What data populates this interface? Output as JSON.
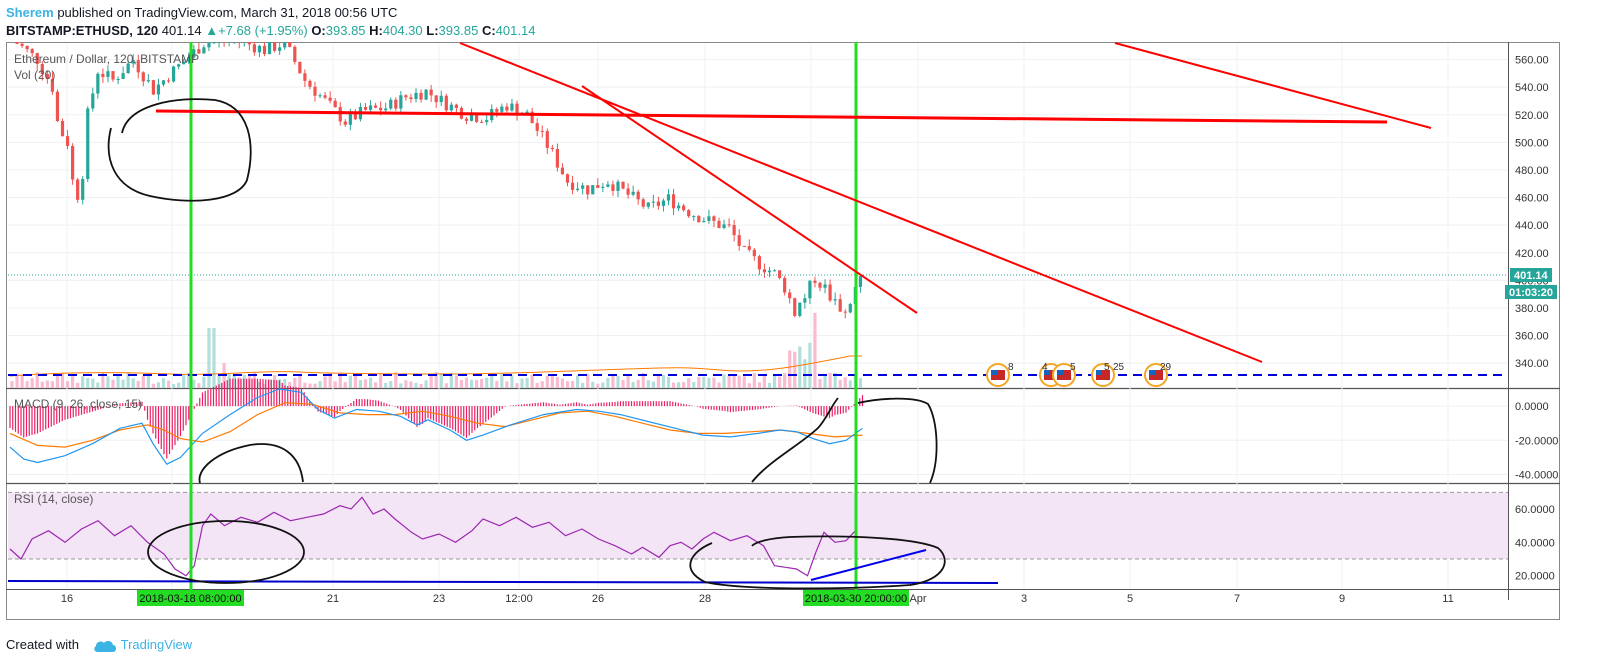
{
  "header": {
    "author": "Sherem",
    "published_text": " published on TradingView.com, March 31, 2018 00:56 UTC",
    "symbol": "BITSTAMP:ETHUSD, 120",
    "last": "401.14",
    "change": "+7.68 (+1.95%)",
    "o_label": "O:",
    "o_value": "393.85",
    "h_label": "H:",
    "h_value": "404.30",
    "l_label": "L:",
    "l_value": "393.85",
    "c_label": "C:",
    "c_value": "401.14"
  },
  "footer": {
    "created_with": "Created with",
    "brand": "TradingView"
  },
  "colors": {
    "up": "#26a69a",
    "down": "#ef5350",
    "trendline": "#ff0000",
    "vline": "#22dd22",
    "macd": "#2196f3",
    "signal": "#ff7a00",
    "rsi": "#9c27b0",
    "rsi_band": "#f3e5f5",
    "blue_line": "#0000cc"
  },
  "chart_data": [
    {
      "type": "candlestick",
      "title": "Ethereum / Dollar, 120, BITSTAMP",
      "indicator_label": "Vol (20)",
      "y_ticks": [
        "560.00",
        "540.00",
        "520.00",
        "500.00",
        "480.00",
        "460.00",
        "440.00",
        "420.00",
        "400.00",
        "380.00",
        "360.00",
        "340.00"
      ],
      "ylim": [
        322,
        572
      ],
      "last_price_label": "401.14",
      "countdown_label": "01:03:20",
      "x_ticks": [
        "16",
        "18",
        "21",
        "23",
        "12:00",
        "26",
        "28",
        "30",
        "Apr",
        "3",
        "5",
        "7",
        "9",
        "11"
      ],
      "highlight_x_labels": [
        "2018-03-18 08:00:00",
        "2018-03-30 20:00:00"
      ],
      "event_badges": [
        "8",
        "4",
        "5",
        "5",
        "25",
        "29"
      ],
      "close_path": [
        {
          "bar": 0,
          "close": 575
        },
        {
          "bar": 5,
          "close": 560
        },
        {
          "bar": 8,
          "close": 540
        },
        {
          "bar": 9,
          "close": 515
        },
        {
          "bar": 10,
          "close": 506
        },
        {
          "bar": 11,
          "close": 500
        },
        {
          "bar": 12,
          "close": 472
        },
        {
          "bar": 13,
          "close": 462
        },
        {
          "bar": 14,
          "close": 478
        },
        {
          "bar": 15,
          "close": 520
        },
        {
          "bar": 17,
          "close": 552
        },
        {
          "bar": 20,
          "close": 545
        },
        {
          "bar": 24,
          "close": 560
        },
        {
          "bar": 28,
          "close": 538
        },
        {
          "bar": 32,
          "close": 552
        },
        {
          "bar": 38,
          "close": 572
        },
        {
          "bar": 44,
          "close": 575
        },
        {
          "bar": 50,
          "close": 567
        },
        {
          "bar": 54,
          "close": 572
        },
        {
          "bar": 58,
          "close": 545
        },
        {
          "bar": 62,
          "close": 530
        },
        {
          "bar": 66,
          "close": 515
        },
        {
          "bar": 70,
          "close": 523
        },
        {
          "bar": 74,
          "close": 525
        },
        {
          "bar": 78,
          "close": 533
        },
        {
          "bar": 82,
          "close": 537
        },
        {
          "bar": 86,
          "close": 528
        },
        {
          "bar": 90,
          "close": 520
        },
        {
          "bar": 94,
          "close": 518
        },
        {
          "bar": 98,
          "close": 527
        },
        {
          "bar": 102,
          "close": 520
        },
        {
          "bar": 106,
          "close": 498
        },
        {
          "bar": 110,
          "close": 472
        },
        {
          "bar": 114,
          "close": 466
        },
        {
          "bar": 118,
          "close": 472
        },
        {
          "bar": 122,
          "close": 462
        },
        {
          "bar": 126,
          "close": 452
        },
        {
          "bar": 130,
          "close": 459
        },
        {
          "bar": 134,
          "close": 450
        },
        {
          "bar": 138,
          "close": 443
        },
        {
          "bar": 142,
          "close": 438
        },
        {
          "bar": 145,
          "close": 420
        },
        {
          "bar": 148,
          "close": 412
        },
        {
          "bar": 151,
          "close": 405
        },
        {
          "bar": 153,
          "close": 395
        },
        {
          "bar": 155,
          "close": 378
        },
        {
          "bar": 157,
          "close": 388
        },
        {
          "bar": 159,
          "close": 402
        },
        {
          "bar": 161,
          "close": 394
        },
        {
          "bar": 163,
          "close": 385
        },
        {
          "bar": 165,
          "close": 376
        },
        {
          "bar": 167,
          "close": 393.85
        },
        {
          "bar": 168,
          "close": 401.14
        }
      ],
      "trendlines": [
        {
          "from": [
            "2018-03-18 08:00",
            "517"
          ],
          "to": [
            "2018-04-10",
            "508"
          ]
        },
        {
          "from": [
            "2018-03-23",
            "566"
          ],
          "to": [
            "2018-04-07",
            "337"
          ]
        },
        {
          "from": [
            "2018-03-25 12:00",
            "527"
          ],
          "to": [
            "2018-04-01",
            "373"
          ]
        },
        {
          "from": [
            "2018-04-05",
            "566"
          ],
          "to": [
            "2018-04-11",
            "505"
          ]
        }
      ]
    },
    {
      "type": "line",
      "title": "MACD (9, 26, close, 15)",
      "y_ticks": [
        "0.0000",
        "-20.0000",
        "-40.0000"
      ],
      "ylim": [
        -45,
        10
      ],
      "series": [
        {
          "name": "MACD",
          "points": [
            [
              0,
              -24
            ],
            [
              5,
              -31
            ],
            [
              10,
              -33
            ],
            [
              20,
              -29
            ],
            [
              30,
              -22
            ],
            [
              40,
              -13
            ],
            [
              48,
              -10
            ],
            [
              52,
              -22
            ],
            [
              57,
              -34
            ],
            [
              62,
              -30
            ],
            [
              70,
              -16
            ],
            [
              80,
              -5
            ],
            [
              90,
              5
            ],
            [
              98,
              10
            ],
            [
              106,
              8
            ],
            [
              112,
              -2
            ],
            [
              118,
              -7
            ],
            [
              126,
              -2
            ],
            [
              134,
              -3
            ],
            [
              142,
              -6
            ],
            [
              148,
              -11
            ],
            [
              152,
              -8
            ],
            [
              160,
              -14
            ],
            [
              166,
              -20
            ],
            [
              172,
              -17
            ],
            [
              182,
              -11
            ],
            [
              194,
              -5
            ],
            [
              206,
              -2
            ],
            [
              214,
              -3
            ],
            [
              222,
              -5
            ],
            [
              232,
              -9
            ],
            [
              242,
              -13
            ],
            [
              252,
              -17
            ],
            [
              262,
              -18
            ],
            [
              272,
              -16
            ],
            [
              280,
              -14
            ],
            [
              286,
              -15
            ],
            [
              292,
              -19
            ],
            [
              298,
              -22
            ],
            [
              304,
              -20
            ],
            [
              310,
              -13
            ]
          ]
        },
        {
          "name": "Signal",
          "points": [
            [
              0,
              -16
            ],
            [
              10,
              -23
            ],
            [
              20,
              -24
            ],
            [
              30,
              -20
            ],
            [
              40,
              -14
            ],
            [
              50,
              -11
            ],
            [
              56,
              -14
            ],
            [
              62,
              -19
            ],
            [
              70,
              -21
            ],
            [
              80,
              -15
            ],
            [
              90,
              -5
            ],
            [
              100,
              2
            ],
            [
              110,
              1
            ],
            [
              120,
              -4
            ],
            [
              130,
              -5
            ],
            [
              140,
              -5
            ],
            [
              150,
              -3
            ],
            [
              160,
              -6
            ],
            [
              170,
              -10
            ],
            [
              180,
              -12
            ],
            [
              190,
              -8
            ],
            [
              200,
              -4
            ],
            [
              210,
              -3
            ],
            [
              220,
              -6
            ],
            [
              230,
              -10
            ],
            [
              240,
              -14
            ],
            [
              250,
              -16
            ],
            [
              260,
              -16
            ],
            [
              270,
              -15
            ],
            [
              280,
              -14
            ],
            [
              290,
              -16
            ],
            [
              300,
              -18
            ],
            [
              310,
              -17
            ]
          ]
        }
      ]
    },
    {
      "type": "line",
      "title": "RSI (14, close)",
      "y_ticks": [
        "60.0000",
        "40.0000",
        "20.0000"
      ],
      "ylim": [
        12,
        75
      ],
      "band": [
        30,
        70
      ],
      "series": [
        {
          "name": "RSI",
          "points": [
            [
              0,
              36
            ],
            [
              4,
              30
            ],
            [
              8,
              42
            ],
            [
              14,
              47
            ],
            [
              20,
              40
            ],
            [
              26,
              48
            ],
            [
              32,
              53
            ],
            [
              38,
              44
            ],
            [
              44,
              50
            ],
            [
              50,
              40
            ],
            [
              56,
              33
            ],
            [
              60,
              24
            ],
            [
              64,
              20
            ],
            [
              67,
              26
            ],
            [
              70,
              50
            ],
            [
              73,
              57
            ],
            [
              78,
              50
            ],
            [
              84,
              55
            ],
            [
              90,
              52
            ],
            [
              96,
              58
            ],
            [
              102,
              53
            ],
            [
              108,
              55
            ],
            [
              114,
              57
            ],
            [
              120,
              62
            ],
            [
              124,
              60
            ],
            [
              128,
              67
            ],
            [
              132,
              57
            ],
            [
              136,
              60
            ],
            [
              140,
              54
            ],
            [
              146,
              46
            ],
            [
              150,
              42
            ],
            [
              156,
              45
            ],
            [
              162,
              40
            ],
            [
              168,
              47
            ],
            [
              172,
              54
            ],
            [
              178,
              50
            ],
            [
              184,
              55
            ],
            [
              190,
              49
            ],
            [
              196,
              52
            ],
            [
              202,
              44
            ],
            [
              208,
              48
            ],
            [
              214,
              42
            ],
            [
              220,
              38
            ],
            [
              226,
              33
            ],
            [
              230,
              37
            ],
            [
              236,
              31
            ],
            [
              240,
              38
            ],
            [
              244,
              40
            ],
            [
              248,
              36
            ],
            [
              252,
              42
            ],
            [
              256,
              46
            ],
            [
              262,
              41
            ],
            [
              268,
              44
            ],
            [
              274,
              38
            ],
            [
              278,
              26
            ],
            [
              282,
              25
            ],
            [
              286,
              24
            ],
            [
              290,
              20
            ],
            [
              293,
              34
            ],
            [
              296,
              46
            ],
            [
              300,
              40
            ],
            [
              304,
              41
            ],
            [
              308,
              48
            ]
          ]
        }
      ]
    }
  ]
}
